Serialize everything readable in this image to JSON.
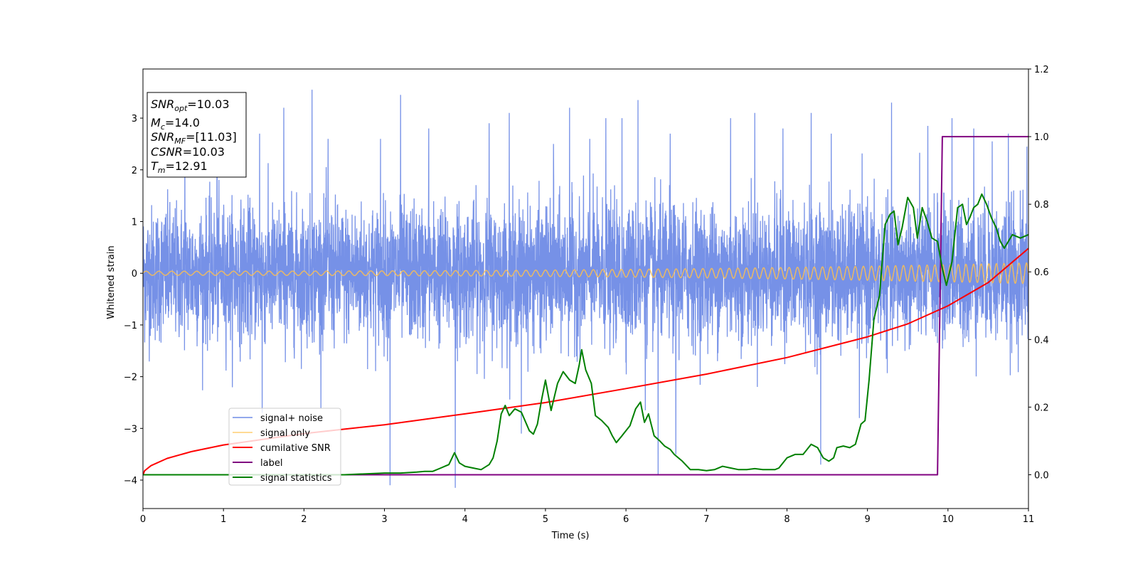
{
  "chart_data": {
    "type": "line",
    "title": "",
    "xlabel": "Time (s)",
    "ylabel": "Whitened strain",
    "xlim": [
      0,
      11
    ],
    "ylim": [
      -4.55,
      3.95
    ],
    "y2lim": [
      -0.1,
      1.2
    ],
    "xticks": [
      "0",
      "1",
      "2",
      "3",
      "4",
      "5",
      "6",
      "7",
      "8",
      "9",
      "10",
      "11"
    ],
    "yticks": [
      "−4",
      "−3",
      "−2",
      "−1",
      "0",
      "1",
      "2",
      "3"
    ],
    "y2ticks": [
      "0.0",
      "0.2",
      "0.4",
      "0.6",
      "0.8",
      "1.0",
      "1.2"
    ],
    "grid": false,
    "legend_position": "lower-left",
    "info_box": {
      "line1_main": "SNR",
      "line1_sub": "opt",
      "line1_value": "=10.03",
      "line2_main": "M",
      "line2_sub": "c",
      "line2_value": "=14.0",
      "line3_main": "SNR",
      "line3_sub": "MF",
      "line3_value": "=[11.03]",
      "line4_main": "CSNR",
      "line4_value": "=10.03",
      "line5_main": "T",
      "line5_sub": "m",
      "line5_value": "=12.91"
    },
    "series": [
      {
        "name": "signal+ noise",
        "color": "#6f8be6",
        "axis": "left",
        "noise_sigma": 0.65,
        "spikes": [
          [
            0.52,
            2.5
          ],
          [
            0.92,
            2.9
          ],
          [
            1.45,
            2.7
          ],
          [
            1.48,
            -2.7
          ],
          [
            1.75,
            3.2
          ],
          [
            2.1,
            3.55
          ],
          [
            2.3,
            2.6
          ],
          [
            2.95,
            2.6
          ],
          [
            3.07,
            -4.1
          ],
          [
            3.2,
            3.45
          ],
          [
            3.55,
            2.8
          ],
          [
            3.88,
            -4.15
          ],
          [
            4.3,
            2.9
          ],
          [
            4.55,
            3.1
          ],
          [
            4.7,
            -3.1
          ],
          [
            5.1,
            2.5
          ],
          [
            5.3,
            3.2
          ],
          [
            5.55,
            2.6
          ],
          [
            5.75,
            3.0
          ],
          [
            5.95,
            3.0
          ],
          [
            6.15,
            3.35
          ],
          [
            6.24,
            -2.65
          ],
          [
            6.4,
            -3.9
          ],
          [
            6.55,
            2.7
          ],
          [
            6.62,
            -3.5
          ],
          [
            7.3,
            3.0
          ],
          [
            7.6,
            3.1
          ],
          [
            7.95,
            2.8
          ],
          [
            8.3,
            3.1
          ],
          [
            8.42,
            -3.7
          ],
          [
            8.55,
            2.7
          ],
          [
            8.9,
            -2.8
          ],
          [
            9.3,
            3.3
          ],
          [
            9.75,
            2.85
          ],
          [
            10.05,
            3.0
          ],
          [
            10.32,
            2.8
          ],
          [
            10.55,
            2.55
          ],
          [
            10.75,
            2.7
          ],
          [
            10.98,
            2.45
          ]
        ]
      },
      {
        "name": "signal only",
        "color": "#ffc04d",
        "axis": "left",
        "chirp": {
          "f0": 6.2,
          "f1": 10.8,
          "a0": 0.04,
          "a1": 0.2
        }
      },
      {
        "name": "cumilative SNR",
        "color": "#ff0000",
        "axis": "left",
        "x": [
          0,
          0.02,
          0.1,
          0.3,
          0.6,
          1,
          2,
          3,
          4,
          5,
          6,
          7,
          8,
          9,
          9.5,
          10,
          10.5,
          11
        ],
        "y": [
          -3.9,
          -3.82,
          -3.72,
          -3.58,
          -3.45,
          -3.32,
          -3.1,
          -2.93,
          -2.72,
          -2.5,
          -2.23,
          -1.95,
          -1.63,
          -1.23,
          -0.98,
          -0.63,
          -0.18,
          0.48
        ]
      },
      {
        "name": "label",
        "color": "#800080",
        "axis": "right",
        "x": [
          0,
          9.87,
          9.93,
          11
        ],
        "y": [
          0,
          0,
          1,
          1
        ]
      },
      {
        "name": "signal statistics",
        "color": "#008000",
        "axis": "right",
        "x": [
          0,
          0.5,
          1,
          1.5,
          2,
          2.5,
          3,
          3.2,
          3.4,
          3.5,
          3.6,
          3.7,
          3.75,
          3.8,
          3.87,
          3.93,
          4.0,
          4.1,
          4.2,
          4.3,
          4.35,
          4.4,
          4.45,
          4.5,
          4.55,
          4.62,
          4.7,
          4.8,
          4.85,
          4.9,
          4.95,
          5.0,
          5.07,
          5.15,
          5.22,
          5.3,
          5.37,
          5.42,
          5.45,
          5.5,
          5.57,
          5.62,
          5.7,
          5.78,
          5.83,
          5.88,
          5.95,
          6.05,
          6.12,
          6.18,
          6.23,
          6.28,
          6.35,
          6.42,
          6.48,
          6.55,
          6.6,
          6.7,
          6.8,
          6.9,
          7.0,
          7.1,
          7.2,
          7.3,
          7.4,
          7.5,
          7.6,
          7.7,
          7.8,
          7.85,
          7.9,
          8.0,
          8.1,
          8.2,
          8.25,
          8.3,
          8.38,
          8.45,
          8.52,
          8.58,
          8.62,
          8.7,
          8.78,
          8.85,
          8.92,
          8.97,
          9.02,
          9.08,
          9.15,
          9.22,
          9.28,
          9.33,
          9.38,
          9.43,
          9.5,
          9.57,
          9.62,
          9.68,
          9.74,
          9.8,
          9.87,
          9.93,
          9.98,
          10.05,
          10.12,
          10.18,
          10.23,
          10.27,
          10.32,
          10.37,
          10.42,
          10.48,
          10.54,
          10.6,
          10.65,
          10.7,
          10.8,
          10.9,
          11.0
        ],
        "y": [
          0.0,
          0.0,
          0.0,
          0.0,
          0.0,
          0.0,
          0.005,
          0.005,
          0.008,
          0.01,
          0.01,
          0.02,
          0.025,
          0.03,
          0.065,
          0.035,
          0.025,
          0.02,
          0.015,
          0.03,
          0.05,
          0.1,
          0.18,
          0.205,
          0.175,
          0.195,
          0.185,
          0.13,
          0.12,
          0.15,
          0.22,
          0.28,
          0.19,
          0.27,
          0.305,
          0.28,
          0.27,
          0.325,
          0.37,
          0.31,
          0.27,
          0.175,
          0.16,
          0.14,
          0.115,
          0.095,
          0.115,
          0.145,
          0.195,
          0.215,
          0.155,
          0.18,
          0.115,
          0.1,
          0.085,
          0.075,
          0.06,
          0.04,
          0.015,
          0.015,
          0.012,
          0.015,
          0.025,
          0.02,
          0.015,
          0.015,
          0.018,
          0.015,
          0.015,
          0.015,
          0.02,
          0.05,
          0.06,
          0.06,
          0.075,
          0.09,
          0.08,
          0.05,
          0.04,
          0.05,
          0.08,
          0.085,
          0.08,
          0.09,
          0.15,
          0.16,
          0.28,
          0.46,
          0.53,
          0.74,
          0.77,
          0.78,
          0.68,
          0.73,
          0.82,
          0.79,
          0.7,
          0.79,
          0.75,
          0.7,
          0.69,
          0.61,
          0.56,
          0.63,
          0.79,
          0.8,
          0.74,
          0.76,
          0.79,
          0.8,
          0.83,
          0.8,
          0.76,
          0.73,
          0.69,
          0.67,
          0.71,
          0.7,
          0.71
        ]
      }
    ]
  }
}
